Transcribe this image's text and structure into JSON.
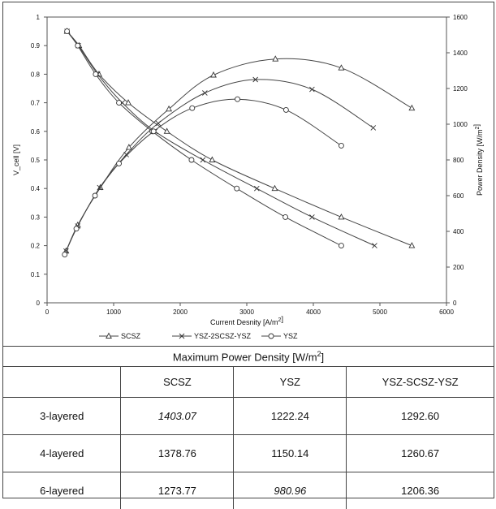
{
  "chart_data": {
    "type": "line",
    "title": "",
    "xlabel": "Current Desnity [A/m²]",
    "ylabel_left": "V_cell [V]",
    "ylabel_right": "Power Density [W/m²]",
    "xlim": [
      0,
      6000
    ],
    "ylim_left": [
      0,
      1
    ],
    "ylim_right": [
      0,
      1600
    ],
    "x_ticks": [
      "0",
      "1000",
      "2000",
      "3000",
      "4000",
      "5000",
      "6000"
    ],
    "y_ticks_left": [
      "0",
      "0.1",
      "0.2",
      "0.3",
      "0.4",
      "0.5",
      "0.6",
      "0.7",
      "0.8",
      "0.9",
      "1"
    ],
    "y_ticks_right": [
      "0",
      "200",
      "400",
      "600",
      "800",
      "1000",
      "1200",
      "1400",
      "1600"
    ],
    "grid": false,
    "legend_position": "bottom",
    "series": [
      {
        "name": "SCSZ",
        "marker": "triangle",
        "axis": "left",
        "x": [
          300,
          480,
          780,
          1220,
          1800,
          2480,
          3420,
          4420,
          5480
        ],
        "values": [
          0.95,
          0.9,
          0.8,
          0.7,
          0.6,
          0.5,
          0.4,
          0.3,
          0.2
        ]
      },
      {
        "name": "YSZ-2SCSZ-YSZ",
        "marker": "x",
        "axis": "left",
        "x": [
          300,
          470,
          760,
          1130,
          1620,
          2340,
          3150,
          3980,
          4920
        ],
        "values": [
          0.95,
          0.9,
          0.8,
          0.7,
          0.6,
          0.5,
          0.4,
          0.3,
          0.2
        ]
      },
      {
        "name": "YSZ",
        "marker": "circle",
        "axis": "left",
        "x": [
          300,
          460,
          730,
          1080,
          1580,
          2170,
          2850,
          3580,
          4420
        ],
        "values": [
          0.95,
          0.9,
          0.8,
          0.7,
          0.6,
          0.5,
          0.4,
          0.3,
          0.2
        ]
      },
      {
        "name": "SCSZ",
        "marker": "triangle",
        "axis": "right",
        "x": [
          285,
          460,
          800,
          1230,
          1830,
          2500,
          3430,
          4420,
          5480
        ],
        "values": [
          290,
          435,
          645,
          870,
          1085,
          1275,
          1365,
          1315,
          1090
        ]
      },
      {
        "name": "YSZ-2SCSZ-YSZ",
        "marker": "x",
        "axis": "right",
        "x": [
          285,
          460,
          790,
          1190,
          1670,
          2370,
          3130,
          3980,
          4900
        ],
        "values": [
          290,
          430,
          645,
          830,
          1005,
          1175,
          1250,
          1195,
          980
        ]
      },
      {
        "name": "YSZ",
        "marker": "circle",
        "axis": "right",
        "x": [
          265,
          440,
          720,
          1080,
          1600,
          2180,
          2860,
          3590,
          4420
        ],
        "values": [
          270,
          415,
          600,
          780,
          960,
          1090,
          1140,
          1080,
          880
        ]
      }
    ],
    "legend": [
      "SCSZ",
      "YSZ-2SCSZ-YSZ",
      "YSZ"
    ]
  },
  "table": {
    "title": "Maximum Power Density [W/m²]",
    "columns": [
      "",
      "SCSZ",
      "YSZ",
      "YSZ-SCSZ-YSZ"
    ],
    "rows": [
      {
        "label": "3-layered",
        "cells": [
          {
            "v": "1403.07",
            "italic": true
          },
          {
            "v": "1222.24",
            "italic": false
          },
          {
            "v": "1292.60",
            "italic": false
          }
        ]
      },
      {
        "label": "4-layered",
        "cells": [
          {
            "v": "1378.76",
            "italic": false
          },
          {
            "v": "1150.14",
            "italic": false
          },
          {
            "v": "1260.67",
            "italic": false
          }
        ]
      },
      {
        "label": "6-layered",
        "cells": [
          {
            "v": "1273.77",
            "italic": false
          },
          {
            "v": "980.96",
            "italic": true
          },
          {
            "v": "1206.36",
            "italic": false
          }
        ]
      }
    ]
  }
}
